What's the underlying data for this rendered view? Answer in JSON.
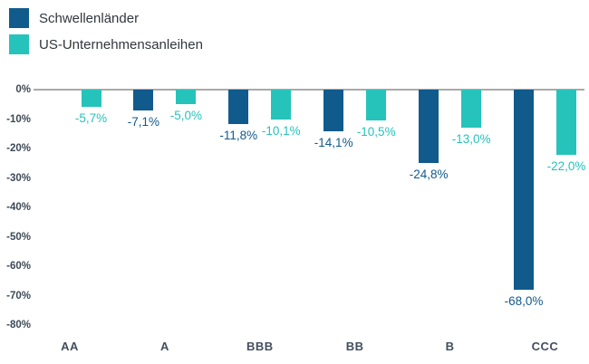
{
  "legend": {
    "position": "top-left"
  },
  "chart_data": {
    "type": "bar",
    "categories": [
      "AA",
      "A",
      "BBB",
      "BB",
      "B",
      "CCC"
    ],
    "series": [
      {
        "name": "Schwellenländer",
        "color": "#115a8c",
        "values": [
          null,
          -7.1,
          -11.8,
          -14.1,
          -24.8,
          -68.0
        ],
        "labels": [
          "",
          "-7,1%",
          "-11,8%",
          "-14,1%",
          "-24,8%",
          "-68,0%"
        ]
      },
      {
        "name": "US-Unternehmensanleihen",
        "color": "#26c3bb",
        "values": [
          -5.7,
          -5.0,
          -10.1,
          -10.5,
          -13.0,
          -22.0
        ],
        "labels": [
          "-5,7%",
          "-5,0%",
          "-10,1%",
          "-10,5%",
          "-13,0%",
          "-22,0%"
        ]
      }
    ],
    "y_ticks": [
      "0%",
      "-10%",
      "-20%",
      "-30%",
      "-40%",
      "-50%",
      "-60%",
      "-70%",
      "-80%"
    ],
    "ylim": [
      -80,
      0
    ],
    "decimal_separator": ",",
    "grid": false,
    "legend_position": "top-left",
    "zero_line_color": "#a9a9a9",
    "tick_label_color": "#3e4956"
  }
}
